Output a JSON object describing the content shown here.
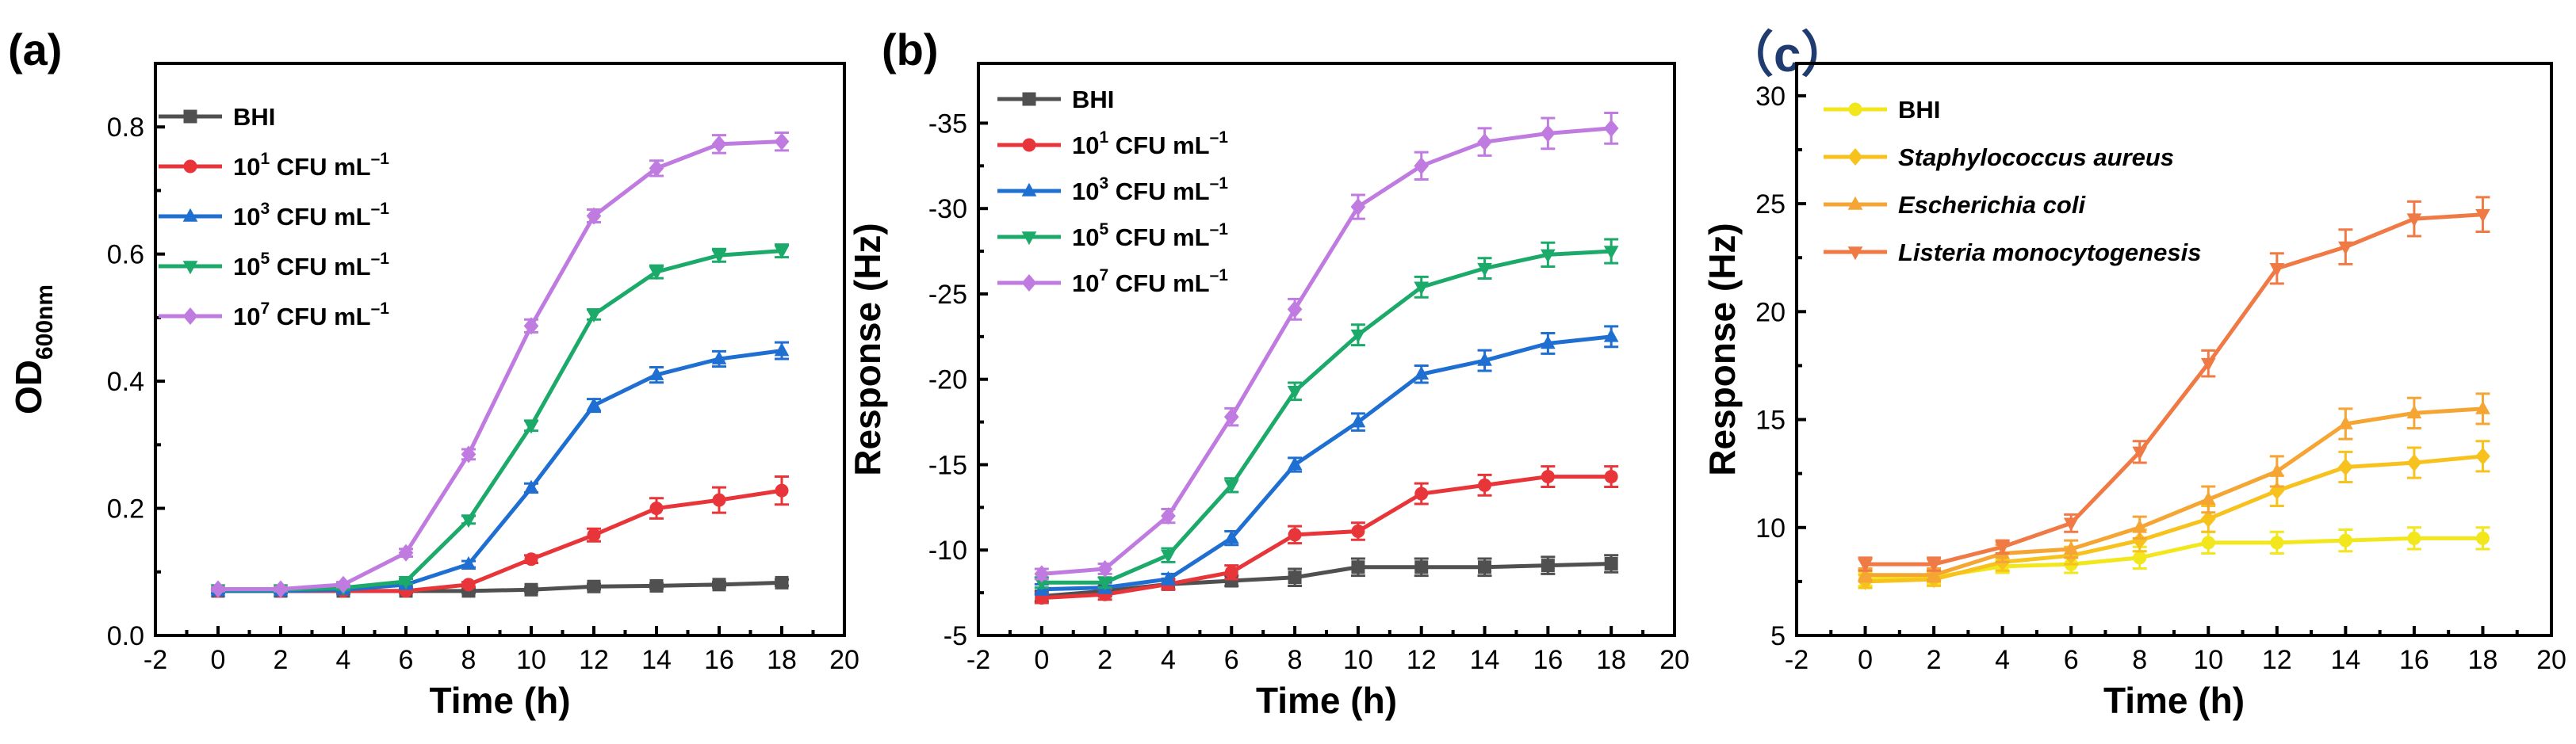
{
  "chart_data": [
    {
      "panel": "(a)",
      "type": "line",
      "xlabel": "Time (h)",
      "ylabel": "OD",
      "ylabel_sub": "600nm",
      "xlim": [
        -2,
        20
      ],
      "ylim": [
        0,
        0.9
      ],
      "xticks": [
        -2,
        0,
        2,
        4,
        6,
        8,
        10,
        12,
        14,
        16,
        18,
        20
      ],
      "yticks": [
        0.0,
        0.2,
        0.4,
        0.6,
        0.8
      ],
      "ytick_labels": [
        "0.0",
        "0.2",
        "0.4",
        "0.6",
        "0.8"
      ],
      "x": [
        0,
        2,
        4,
        6,
        8,
        10,
        12,
        14,
        16,
        18
      ],
      "legend_position": "top-left",
      "series": [
        {
          "name": "BHI",
          "color": "#505050",
          "marker": "square",
          "values": [
            0.07,
            0.07,
            0.07,
            0.07,
            0.07,
            0.072,
            0.077,
            0.078,
            0.08,
            0.083
          ],
          "errors": [
            0.003,
            0.003,
            0.003,
            0.003,
            0.003,
            0.003,
            0.004,
            0.004,
            0.004,
            0.005
          ]
        },
        {
          "name": "10",
          "sup": "1",
          "unit": " CFU mL",
          "unit_sup": "–1",
          "color": "#e8353a",
          "marker": "circle",
          "values": [
            0.07,
            0.07,
            0.07,
            0.07,
            0.08,
            0.12,
            0.158,
            0.2,
            0.213,
            0.228
          ],
          "errors": [
            0.003,
            0.003,
            0.003,
            0.003,
            0.004,
            0.006,
            0.01,
            0.016,
            0.02,
            0.022
          ]
        },
        {
          "name": "10",
          "sup": "3",
          "unit": " CFU mL",
          "unit_sup": "–1",
          "color": "#1e6fd1",
          "marker": "triangle-up",
          "values": [
            0.07,
            0.07,
            0.072,
            0.08,
            0.112,
            0.232,
            0.362,
            0.41,
            0.435,
            0.448
          ],
          "errors": [
            0.003,
            0.003,
            0.003,
            0.004,
            0.005,
            0.007,
            0.01,
            0.012,
            0.012,
            0.013
          ]
        },
        {
          "name": "10",
          "sup": "5",
          "unit": " CFU mL",
          "unit_sup": "–1",
          "color": "#1caa6a",
          "marker": "triangle-down",
          "values": [
            0.072,
            0.072,
            0.075,
            0.085,
            0.182,
            0.33,
            0.505,
            0.572,
            0.598,
            0.605
          ],
          "errors": [
            0.003,
            0.003,
            0.003,
            0.004,
            0.006,
            0.008,
            0.008,
            0.01,
            0.01,
            0.01
          ]
        },
        {
          "name": "10",
          "sup": "7",
          "unit": " CFU mL",
          "unit_sup": "–1",
          "color": "#c07be0",
          "marker": "diamond",
          "values": [
            0.073,
            0.073,
            0.08,
            0.13,
            0.285,
            0.487,
            0.66,
            0.735,
            0.773,
            0.777
          ],
          "errors": [
            0.003,
            0.003,
            0.004,
            0.006,
            0.008,
            0.01,
            0.01,
            0.012,
            0.014,
            0.014
          ]
        }
      ]
    },
    {
      "panel": "(b)",
      "type": "line",
      "xlabel": "Time (h)",
      "ylabel": "Response (Hz)",
      "xlim": [
        -2,
        20
      ],
      "ylim": [
        -5,
        -38.5
      ],
      "inverted_y": true,
      "xticks": [
        -2,
        0,
        2,
        4,
        6,
        8,
        10,
        12,
        14,
        16,
        18,
        20
      ],
      "yticks": [
        -5,
        -10,
        -15,
        -20,
        -25,
        -30,
        -35
      ],
      "ytick_labels": [
        "-5",
        "-10",
        "-15",
        "-20",
        "-25",
        "-30",
        "-35"
      ],
      "x": [
        0,
        2,
        4,
        6,
        8,
        10,
        12,
        14,
        16,
        18
      ],
      "legend_position": "top-left",
      "series": [
        {
          "name": "BHI",
          "color": "#505050",
          "marker": "square",
          "values": [
            -7.3,
            -7.6,
            -8.0,
            -8.2,
            -8.4,
            -9.0,
            -9.0,
            -9.0,
            -9.1,
            -9.2
          ],
          "errors": [
            0.3,
            0.3,
            0.3,
            0.3,
            0.5,
            0.5,
            0.5,
            0.5,
            0.5,
            0.5
          ]
        },
        {
          "name": "10",
          "sup": "1",
          "unit": " CFU mL",
          "unit_sup": "–1",
          "color": "#e8353a",
          "marker": "circle",
          "values": [
            -7.2,
            -7.4,
            -8.0,
            -8.7,
            -10.9,
            -11.1,
            -13.3,
            -13.8,
            -14.3,
            -14.3
          ],
          "errors": [
            0.3,
            0.3,
            0.3,
            0.4,
            0.5,
            0.5,
            0.6,
            0.6,
            0.6,
            0.6
          ]
        },
        {
          "name": "10",
          "sup": "3",
          "unit": " CFU mL",
          "unit_sup": "–1",
          "color": "#1e6fd1",
          "marker": "triangle-up",
          "values": [
            -7.7,
            -7.8,
            -8.3,
            -10.7,
            -15.0,
            -17.5,
            -20.3,
            -21.1,
            -22.1,
            -22.5
          ],
          "errors": [
            0.3,
            0.3,
            0.3,
            0.4,
            0.4,
            0.5,
            0.5,
            0.6,
            0.6,
            0.6
          ]
        },
        {
          "name": "10",
          "sup": "5",
          "unit": " CFU mL",
          "unit_sup": "–1",
          "color": "#1caa6a",
          "marker": "triangle-down",
          "values": [
            -8.1,
            -8.1,
            -9.7,
            -13.8,
            -19.3,
            -22.6,
            -25.4,
            -26.5,
            -27.3,
            -27.5
          ],
          "errors": [
            0.3,
            0.3,
            0.4,
            0.4,
            0.5,
            0.6,
            0.6,
            0.6,
            0.7,
            0.7
          ]
        },
        {
          "name": "10",
          "sup": "7",
          "unit": " CFU mL",
          "unit_sup": "–1",
          "color": "#c07be0",
          "marker": "diamond",
          "values": [
            -8.6,
            -8.9,
            -12.0,
            -17.8,
            -24.1,
            -30.1,
            -32.5,
            -33.9,
            -34.4,
            -34.7
          ],
          "errors": [
            0.3,
            0.3,
            0.4,
            0.5,
            0.6,
            0.7,
            0.8,
            0.8,
            0.9,
            0.9
          ]
        }
      ]
    },
    {
      "panel": "（c）",
      "type": "line",
      "xlabel": "Time (h)",
      "ylabel": "Response (Hz)",
      "xlim": [
        -2,
        20
      ],
      "ylim": [
        5,
        31.5
      ],
      "xticks": [
        -2,
        0,
        2,
        4,
        6,
        8,
        10,
        12,
        14,
        16,
        18,
        20
      ],
      "yticks": [
        5,
        10,
        15,
        20,
        25,
        30
      ],
      "ytick_labels": [
        "5",
        "10",
        "15",
        "20",
        "25",
        "30"
      ],
      "x": [
        0,
        2,
        4,
        6,
        8,
        10,
        12,
        14,
        16,
        18
      ],
      "legend_position": "top-left",
      "series": [
        {
          "name": "BHI",
          "italic": false,
          "color": "#f2e61c",
          "marker": "circle",
          "values": [
            7.6,
            7.7,
            8.2,
            8.3,
            8.6,
            9.3,
            9.3,
            9.4,
            9.5,
            9.5
          ],
          "errors": [
            0.3,
            0.3,
            0.3,
            0.4,
            0.5,
            0.5,
            0.5,
            0.5,
            0.5,
            0.5
          ]
        },
        {
          "name": "Staphylococcus aureus",
          "italic": true,
          "color": "#f7c21d",
          "marker": "diamond",
          "values": [
            7.5,
            7.6,
            8.4,
            8.7,
            9.4,
            10.4,
            11.7,
            12.8,
            13.0,
            13.3
          ],
          "errors": [
            0.3,
            0.3,
            0.4,
            0.4,
            0.5,
            0.6,
            0.7,
            0.7,
            0.7,
            0.7
          ]
        },
        {
          "name": "Escherichia coli",
          "italic": true,
          "color": "#f5a533",
          "marker": "triangle-up",
          "values": [
            7.8,
            7.8,
            8.8,
            9.0,
            10.0,
            11.3,
            12.6,
            14.8,
            15.3,
            15.5
          ],
          "errors": [
            0.3,
            0.3,
            0.4,
            0.4,
            0.5,
            0.6,
            0.7,
            0.7,
            0.7,
            0.7
          ]
        },
        {
          "name": "Listeria monocytogenesis",
          "italic": true,
          "color": "#f07a45",
          "marker": "triangle-down",
          "values": [
            8.3,
            8.3,
            9.1,
            10.2,
            13.5,
            17.6,
            22.0,
            23.0,
            24.3,
            24.5
          ],
          "errors": [
            0.3,
            0.3,
            0.3,
            0.4,
            0.5,
            0.6,
            0.7,
            0.8,
            0.8,
            0.8
          ]
        }
      ]
    }
  ]
}
